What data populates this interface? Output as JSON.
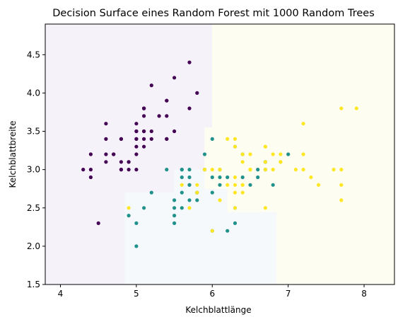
{
  "chart_data": {
    "type": "scatter",
    "title": "Decision Surface eines Random Forest mit 1000 Random Trees",
    "xlabel": "Kelchblattlänge",
    "ylabel": "Kelchblattbreite",
    "xlim": [
      3.8,
      8.4
    ],
    "ylim": [
      1.5,
      4.9
    ],
    "xticks": [
      4,
      5,
      6,
      7,
      8
    ],
    "yticks": [
      1.5,
      2.0,
      2.5,
      3.0,
      3.5,
      4.0,
      4.5
    ],
    "grid": false,
    "decision_regions": [
      {
        "class": 0,
        "color": "#f5f2fa",
        "polygon": [
          [
            3.8,
            1.5
          ],
          [
            4.85,
            1.5
          ],
          [
            4.85,
            2.7
          ],
          [
            5.5,
            2.7
          ],
          [
            5.5,
            3.0
          ],
          [
            5.9,
            3.0
          ],
          [
            5.9,
            3.55
          ],
          [
            6.0,
            3.55
          ],
          [
            6.0,
            4.9
          ],
          [
            3.8,
            4.9
          ]
        ]
      },
      {
        "class": 1,
        "color": "#f5f9fb",
        "polygon": [
          [
            4.85,
            1.5
          ],
          [
            6.85,
            1.5
          ],
          [
            6.85,
            2.45
          ],
          [
            6.2,
            2.45
          ],
          [
            6.2,
            2.75
          ],
          [
            5.9,
            2.75
          ],
          [
            5.9,
            3.0
          ],
          [
            5.5,
            3.0
          ],
          [
            5.5,
            2.7
          ],
          [
            4.85,
            2.7
          ]
        ]
      },
      {
        "class": 2,
        "color": "#fefdf2",
        "polygon": [
          [
            6.85,
            1.5
          ],
          [
            8.4,
            1.5
          ],
          [
            8.4,
            4.9
          ],
          [
            6.0,
            4.9
          ],
          [
            6.0,
            3.55
          ],
          [
            5.9,
            3.55
          ],
          [
            5.9,
            2.75
          ],
          [
            6.2,
            2.75
          ],
          [
            6.2,
            2.45
          ],
          [
            6.85,
            2.45
          ]
        ]
      }
    ],
    "series": [
      {
        "class": 0,
        "color": "#440154",
        "points": [
          [
            5.1,
            3.5
          ],
          [
            4.9,
            3.0
          ],
          [
            4.7,
            3.2
          ],
          [
            4.6,
            3.1
          ],
          [
            5.0,
            3.6
          ],
          [
            5.4,
            3.9
          ],
          [
            4.6,
            3.4
          ],
          [
            5.0,
            3.4
          ],
          [
            4.4,
            2.9
          ],
          [
            4.9,
            3.1
          ],
          [
            5.4,
            3.7
          ],
          [
            4.8,
            3.4
          ],
          [
            4.8,
            3.0
          ],
          [
            4.3,
            3.0
          ],
          [
            5.8,
            4.0
          ],
          [
            5.7,
            4.4
          ],
          [
            5.4,
            3.9
          ],
          [
            5.1,
            3.5
          ],
          [
            5.7,
            3.8
          ],
          [
            5.1,
            3.8
          ],
          [
            5.4,
            3.4
          ],
          [
            5.1,
            3.7
          ],
          [
            4.6,
            3.6
          ],
          [
            5.1,
            3.3
          ],
          [
            4.8,
            3.4
          ],
          [
            5.0,
            3.0
          ],
          [
            5.0,
            3.4
          ],
          [
            5.2,
            3.5
          ],
          [
            5.2,
            3.4
          ],
          [
            4.7,
            3.2
          ],
          [
            4.8,
            3.1
          ],
          [
            5.4,
            3.4
          ],
          [
            5.2,
            4.1
          ],
          [
            5.5,
            4.2
          ],
          [
            4.9,
            3.1
          ],
          [
            5.0,
            3.2
          ],
          [
            5.5,
            3.5
          ],
          [
            4.4,
            3.0
          ],
          [
            5.1,
            3.4
          ],
          [
            5.0,
            3.5
          ],
          [
            4.5,
            2.3
          ],
          [
            4.4,
            3.2
          ],
          [
            5.0,
            3.5
          ],
          [
            5.1,
            3.8
          ],
          [
            4.8,
            3.0
          ],
          [
            5.1,
            3.8
          ],
          [
            4.6,
            3.2
          ],
          [
            5.3,
            3.7
          ],
          [
            5.0,
            3.3
          ]
        ]
      },
      {
        "class": 1,
        "color": "#21918c",
        "points": [
          [
            7.0,
            3.2
          ],
          [
            6.4,
            3.2
          ],
          [
            6.9,
            3.1
          ],
          [
            5.5,
            2.3
          ],
          [
            6.5,
            2.8
          ],
          [
            5.7,
            2.8
          ],
          [
            6.3,
            3.3
          ],
          [
            4.9,
            2.4
          ],
          [
            6.6,
            2.9
          ],
          [
            5.2,
            2.7
          ],
          [
            5.0,
            2.0
          ],
          [
            5.9,
            3.0
          ],
          [
            6.0,
            2.2
          ],
          [
            6.1,
            2.9
          ],
          [
            5.6,
            2.9
          ],
          [
            6.7,
            3.1
          ],
          [
            5.6,
            3.0
          ],
          [
            5.8,
            2.7
          ],
          [
            6.2,
            2.2
          ],
          [
            5.6,
            2.5
          ],
          [
            5.9,
            3.2
          ],
          [
            6.1,
            2.8
          ],
          [
            6.3,
            2.5
          ],
          [
            6.4,
            2.9
          ],
          [
            6.6,
            3.0
          ],
          [
            6.8,
            2.8
          ],
          [
            6.7,
            3.0
          ],
          [
            6.0,
            2.9
          ],
          [
            5.7,
            2.6
          ],
          [
            5.5,
            2.4
          ],
          [
            5.8,
            2.7
          ],
          [
            6.0,
            2.7
          ],
          [
            5.4,
            3.0
          ],
          [
            6.0,
            3.4
          ],
          [
            6.7,
            3.1
          ],
          [
            6.3,
            2.3
          ],
          [
            5.6,
            3.0
          ],
          [
            5.5,
            2.5
          ],
          [
            5.5,
            2.6
          ],
          [
            6.1,
            3.0
          ],
          [
            5.8,
            2.6
          ],
          [
            5.0,
            2.3
          ],
          [
            5.6,
            2.7
          ],
          [
            5.7,
            3.0
          ],
          [
            5.7,
            2.9
          ],
          [
            6.2,
            2.9
          ],
          [
            5.1,
            2.5
          ],
          [
            5.7,
            2.8
          ]
        ]
      },
      {
        "class": 2,
        "color": "#fde725",
        "points": [
          [
            6.3,
            3.3
          ],
          [
            7.1,
            3.0
          ],
          [
            6.3,
            2.9
          ],
          [
            6.5,
            3.0
          ],
          [
            7.6,
            3.0
          ],
          [
            4.9,
            2.5
          ],
          [
            7.3,
            2.9
          ],
          [
            6.7,
            2.5
          ],
          [
            7.2,
            3.6
          ],
          [
            6.5,
            3.2
          ],
          [
            6.4,
            2.7
          ],
          [
            6.8,
            3.0
          ],
          [
            5.7,
            2.5
          ],
          [
            5.8,
            2.8
          ],
          [
            6.4,
            3.2
          ],
          [
            6.5,
            3.0
          ],
          [
            7.7,
            3.8
          ],
          [
            7.7,
            2.6
          ],
          [
            6.0,
            2.2
          ],
          [
            6.9,
            3.2
          ],
          [
            5.6,
            2.8
          ],
          [
            7.7,
            2.8
          ],
          [
            6.3,
            2.7
          ],
          [
            6.7,
            3.3
          ],
          [
            7.2,
            3.2
          ],
          [
            6.2,
            2.8
          ],
          [
            6.1,
            3.0
          ],
          [
            6.4,
            2.8
          ],
          [
            7.2,
            3.0
          ],
          [
            7.4,
            2.8
          ],
          [
            7.9,
            3.8
          ],
          [
            6.4,
            2.8
          ],
          [
            6.3,
            2.8
          ],
          [
            6.1,
            2.6
          ],
          [
            7.7,
            3.0
          ],
          [
            6.3,
            3.4
          ],
          [
            6.4,
            3.1
          ],
          [
            6.0,
            3.0
          ],
          [
            6.9,
            3.1
          ],
          [
            6.7,
            3.1
          ],
          [
            6.9,
            3.1
          ],
          [
            5.8,
            2.7
          ],
          [
            6.8,
            3.2
          ],
          [
            6.7,
            3.3
          ],
          [
            6.7,
            3.0
          ],
          [
            6.3,
            2.5
          ],
          [
            6.5,
            3.0
          ],
          [
            6.2,
            3.4
          ],
          [
            5.9,
            3.0
          ]
        ]
      }
    ]
  }
}
